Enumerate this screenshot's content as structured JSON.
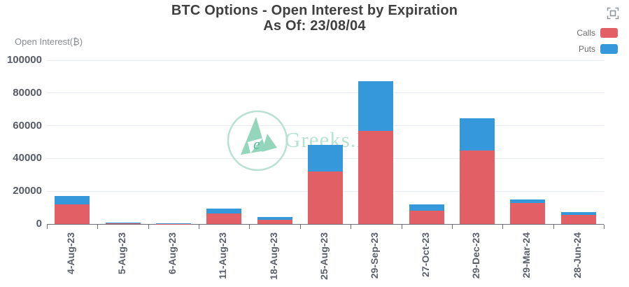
{
  "header": {
    "title_line1": "BTC Options - Open Interest by Expiration",
    "title_line2": "As Of: 23/08/04"
  },
  "watermark": {
    "text": "Greeks.L"
  },
  "chart_data": {
    "type": "bar",
    "stacked": true,
    "title": "BTC Options - Open Interest by Expiration",
    "subtitle": "As Of: 23/08/04",
    "ylabel": "Open Interest(₿)",
    "xlabel": "",
    "ylim": [
      0,
      100000
    ],
    "yticks": [
      0,
      20000,
      40000,
      60000,
      80000,
      100000
    ],
    "grid": true,
    "legend_position": "top-right",
    "categories": [
      "4-Aug-23",
      "5-Aug-23",
      "6-Aug-23",
      "11-Aug-23",
      "18-Aug-23",
      "25-Aug-23",
      "29-Sep-23",
      "27-Oct-23",
      "29-Dec-23",
      "29-Mar-24",
      "28-Jun-24"
    ],
    "series": [
      {
        "name": "Calls",
        "color": "#e25f66",
        "values": [
          12000,
          400,
          100,
          6500,
          2500,
          32000,
          57000,
          8300,
          45000,
          12800,
          5600
        ]
      },
      {
        "name": "Puts",
        "color": "#3498db",
        "values": [
          5000,
          450,
          150,
          2700,
          1700,
          16500,
          30000,
          3500,
          19500,
          2100,
          1600
        ]
      }
    ],
    "colors": {
      "calls": "#e25f66",
      "puts": "#3498db",
      "axis": "#6E7079",
      "grid": "#e6ecf2",
      "watermark": "#b7e2d1"
    }
  }
}
